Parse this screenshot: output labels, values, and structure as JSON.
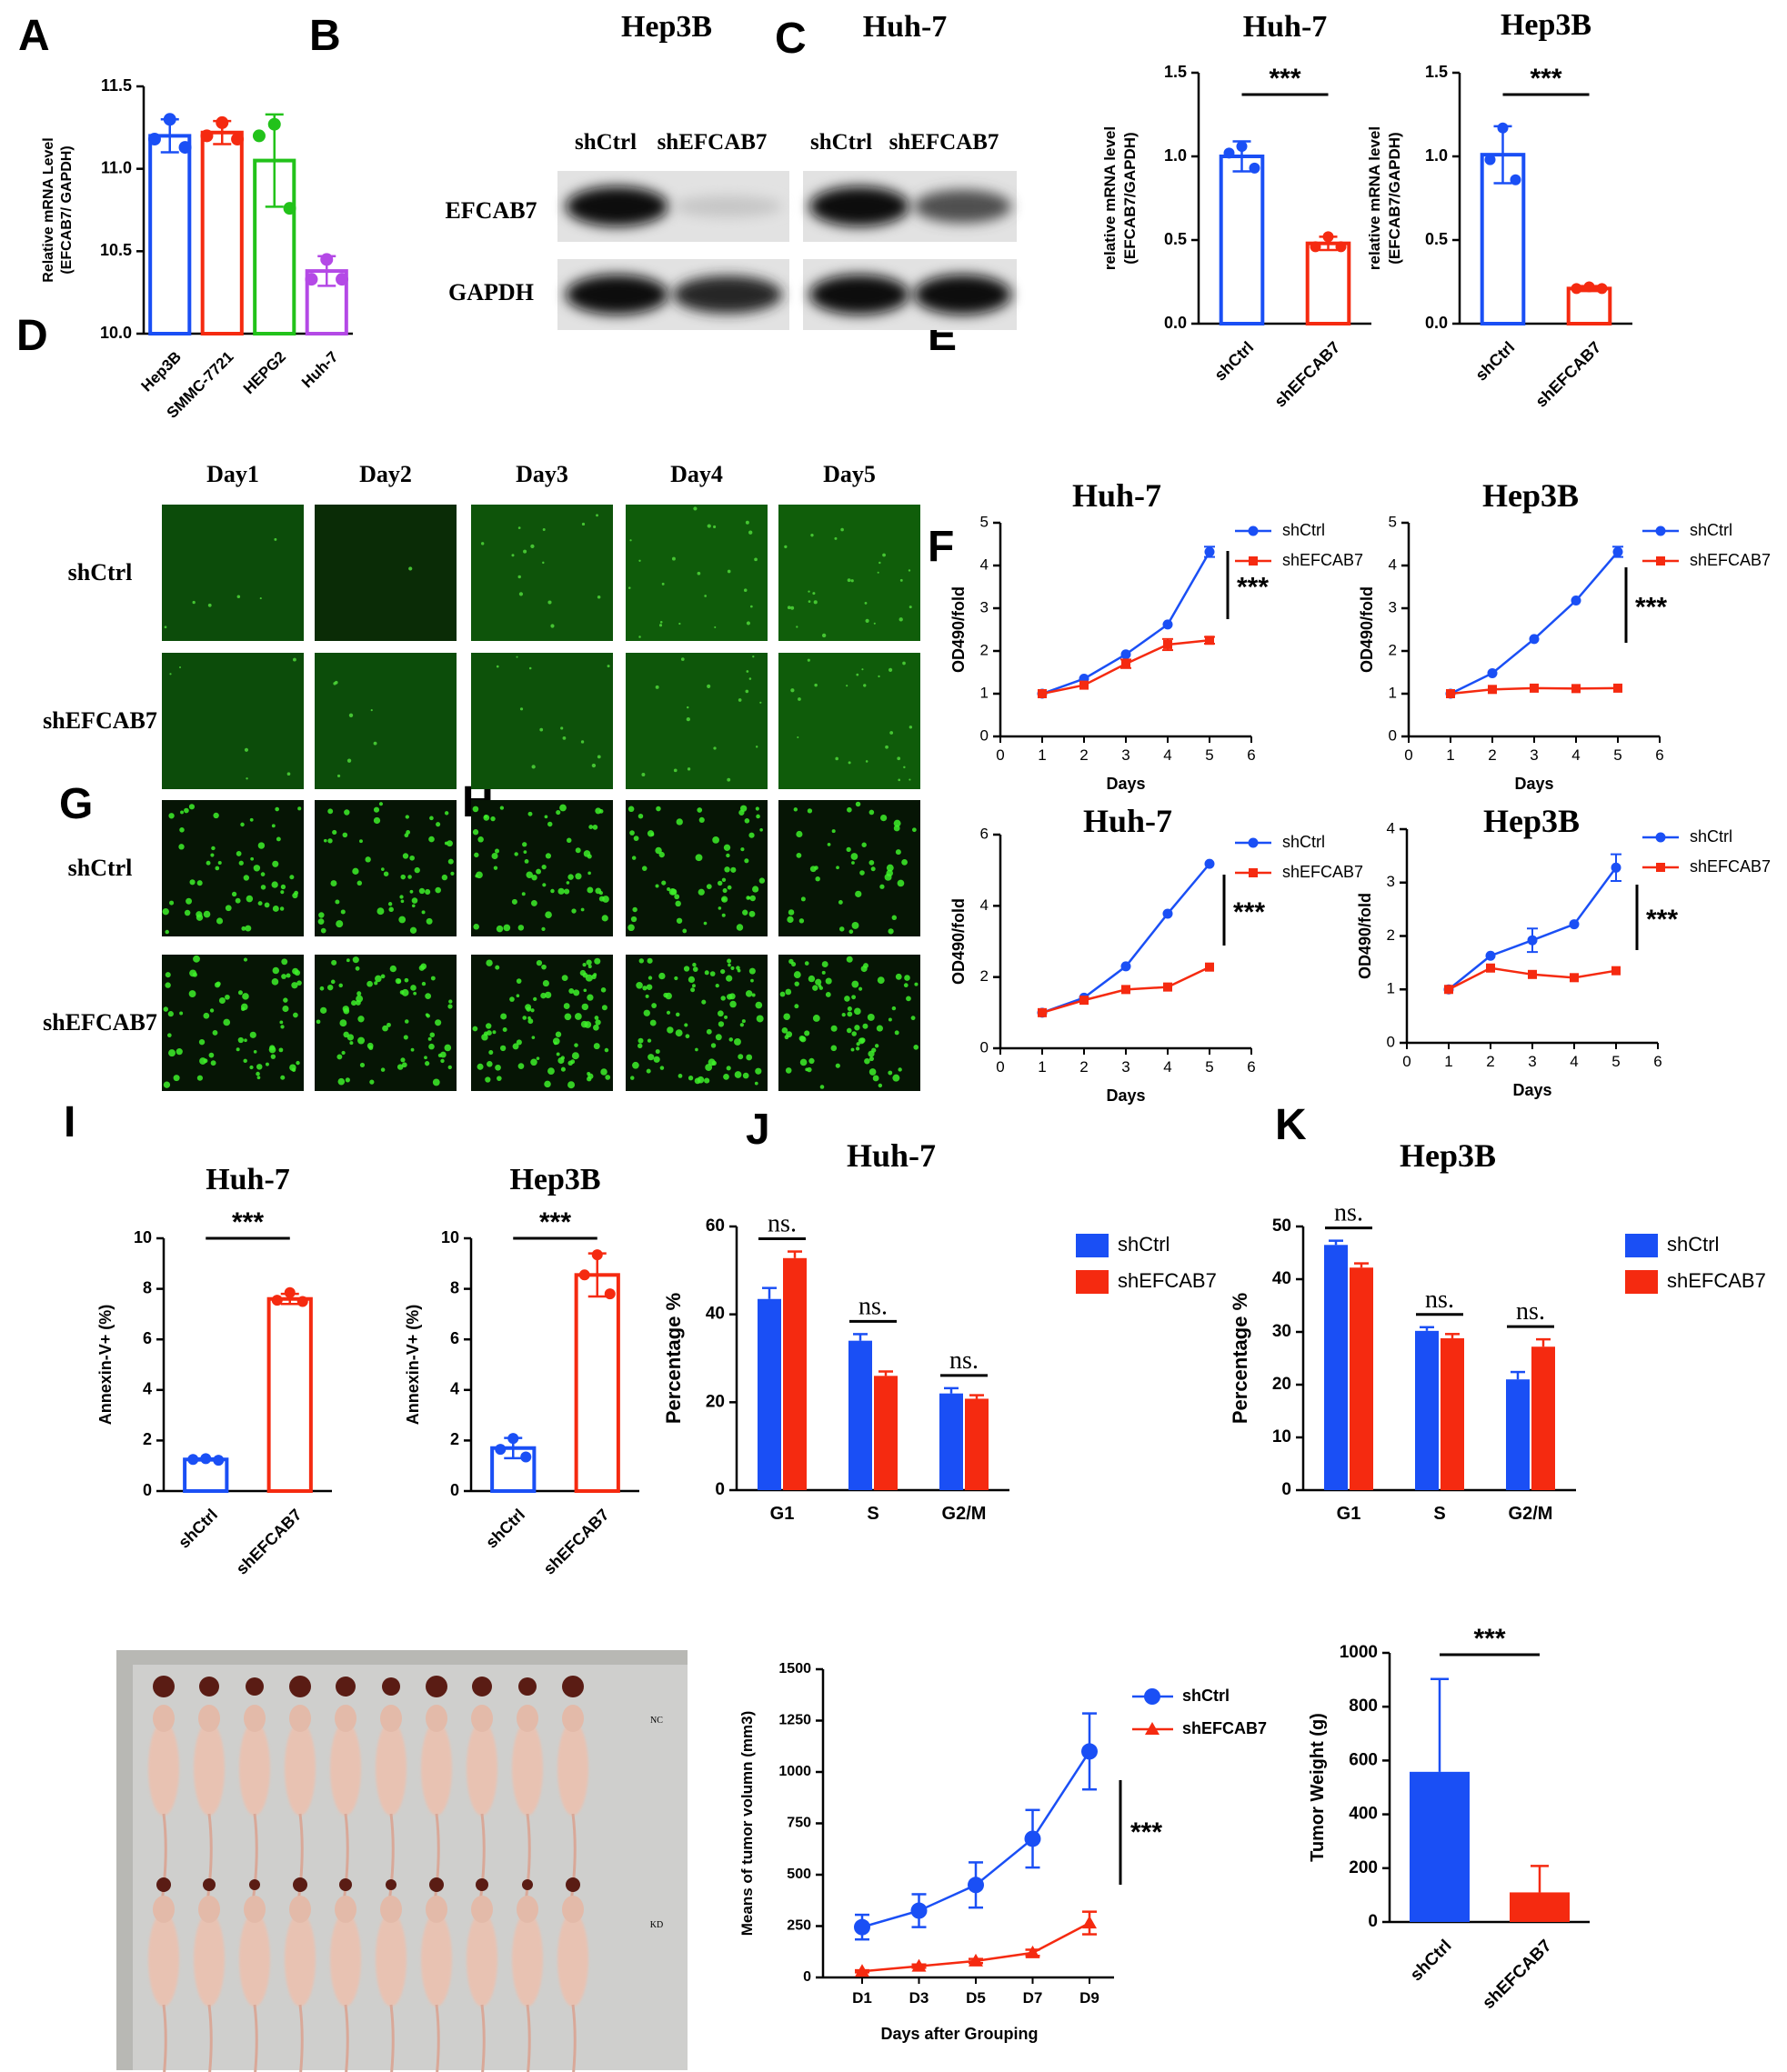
{
  "panel_letters": [
    "A",
    "B",
    "C",
    "D",
    "E",
    "F",
    "G",
    "H",
    "I",
    "J",
    "K"
  ],
  "colors": {
    "blue": "#1a4ff5",
    "red": "#f52a10",
    "green": "#22c21a",
    "purple": "#b449e6",
    "black": "#000000"
  },
  "significance": {
    "three_star": "***",
    "ns": "ns."
  },
  "western_blot": {
    "cell_lines": [
      "Hep3B",
      "Huh-7"
    ],
    "lanes": [
      "shCtrl",
      "shEFCAB7",
      "shCtrl",
      "shEFCAB7"
    ],
    "rows": [
      "EFCAB7",
      "GAPDH"
    ],
    "efcab7_relative_intensity": [
      1.0,
      0.15,
      1.0,
      0.7
    ],
    "gapdh_relative_intensity": [
      1.0,
      0.9,
      1.0,
      1.0
    ]
  },
  "fluorescence": {
    "columns": [
      "Day1",
      "Day2",
      "Day3",
      "Day4",
      "Day5"
    ],
    "rows": [
      "shCtrl",
      "shEFCAB7",
      "shCtrl",
      "shEFCAB7"
    ],
    "cell_density": [
      [
        0.05,
        0.01,
        0.12,
        0.18,
        0.2
      ],
      [
        0.05,
        0.06,
        0.1,
        0.14,
        0.18
      ],
      [
        0.45,
        0.45,
        0.5,
        0.5,
        0.35
      ],
      [
        0.55,
        0.6,
        0.7,
        0.7,
        0.65
      ]
    ]
  },
  "mouse_photo": {
    "group_labels": [
      "NC",
      "KD"
    ],
    "mice_per_group": 10
  },
  "chart_data": [
    {
      "panel": "A",
      "type": "bar",
      "title": "",
      "ylabel": "Relative mRNA Level\n(EFCAB7/ GAPDH)",
      "xlabel": "",
      "categories": [
        "Hep3B",
        "SMMC-7721",
        "HEPG2",
        "Huh-7"
      ],
      "values": [
        11.2,
        11.22,
        11.05,
        10.38
      ],
      "errors": [
        0.1,
        0.07,
        0.28,
        0.09
      ],
      "points": [
        [
          11.3,
          11.18,
          11.13
        ],
        [
          11.28,
          11.2,
          11.18
        ],
        [
          11.27,
          11.2,
          10.76
        ],
        [
          10.45,
          10.33,
          10.33
        ]
      ],
      "bar_colors": [
        "#1a4ff5",
        "#f52a10",
        "#22c21a",
        "#b449e6"
      ],
      "ylim": [
        10.0,
        11.5
      ],
      "yticks": [
        "10.0",
        "10.5",
        "11.0",
        "11.5"
      ]
    },
    {
      "panel": "C",
      "type": "bar",
      "title": "Huh-7",
      "ylabel": "relative mRNA level\n(EFCAB7/GAPDH)",
      "xlabel": "",
      "categories": [
        "shCtrl",
        "shEFCAB7"
      ],
      "values": [
        1.0,
        0.48
      ],
      "errors": [
        0.09,
        0.04
      ],
      "points": [
        [
          1.06,
          1.02,
          0.93
        ],
        [
          0.52,
          0.46,
          0.46
        ]
      ],
      "ylim": [
        0,
        1.5
      ],
      "yticks": [
        "0.0",
        "0.5",
        "1.0",
        "1.5"
      ],
      "significance": "***"
    },
    {
      "panel": "C",
      "type": "bar",
      "title": "Hep3B",
      "ylabel": "relative mRNA level\n(EFCAB7/GAPDH)",
      "xlabel": "",
      "categories": [
        "shCtrl",
        "shEFCAB7"
      ],
      "values": [
        1.01,
        0.21
      ],
      "errors": [
        0.17,
        0.015
      ],
      "points": [
        [
          1.17,
          0.98,
          0.86
        ],
        [
          0.22,
          0.21,
          0.21
        ]
      ],
      "ylim": [
        0,
        1.5
      ],
      "yticks": [
        "0.0",
        "0.5",
        "1.0",
        "1.5"
      ],
      "significance": "***"
    },
    {
      "panel": "E",
      "type": "line",
      "title": "Huh-7",
      "xlabel": "Days",
      "ylabel": "OD490/fold",
      "x": [
        1,
        2,
        3,
        4,
        5
      ],
      "series": [
        {
          "name": "shCtrl",
          "values": [
            1.0,
            1.35,
            1.92,
            2.62,
            4.32
          ],
          "errors": [
            0.02,
            0.03,
            0.04,
            0.03,
            0.12
          ]
        },
        {
          "name": "shEFCAB7",
          "values": [
            1.0,
            1.2,
            1.7,
            2.15,
            2.25
          ],
          "errors": [
            0.02,
            0.05,
            0.1,
            0.13,
            0.08
          ]
        }
      ],
      "xlim": [
        0,
        6
      ],
      "ylim": [
        0,
        5
      ],
      "xticks": [
        "0",
        "1",
        "2",
        "3",
        "4",
        "5",
        "6"
      ],
      "yticks": [
        "0",
        "1",
        "2",
        "3",
        "4",
        "5"
      ],
      "significance": "***"
    },
    {
      "panel": "E",
      "type": "line",
      "title": "Hep3B",
      "xlabel": "Days",
      "ylabel": "OD490/fold",
      "x": [
        1,
        2,
        3,
        4,
        5
      ],
      "series": [
        {
          "name": "shCtrl",
          "values": [
            1.0,
            1.48,
            2.28,
            3.18,
            4.32
          ],
          "errors": [
            0.02,
            0.03,
            0.03,
            0.03,
            0.12
          ]
        },
        {
          "name": "shEFCAB7",
          "values": [
            1.0,
            1.1,
            1.13,
            1.12,
            1.13
          ],
          "errors": [
            0.02,
            0.02,
            0.02,
            0.02,
            0.02
          ]
        }
      ],
      "xlim": [
        0,
        6
      ],
      "ylim": [
        0,
        5
      ],
      "xticks": [
        "0",
        "1",
        "2",
        "3",
        "4",
        "5",
        "6"
      ],
      "yticks": [
        "0",
        "1",
        "2",
        "3",
        "4",
        "5"
      ],
      "significance": "***"
    },
    {
      "panel": "F",
      "type": "line",
      "title": "Huh-7",
      "xlabel": "Days",
      "ylabel": "OD490/fold",
      "x": [
        1,
        2,
        3,
        4,
        5
      ],
      "series": [
        {
          "name": "shCtrl",
          "values": [
            1.0,
            1.42,
            2.3,
            3.78,
            5.18
          ],
          "errors": [
            0.03,
            0.03,
            0.03,
            0.03,
            0.03
          ]
        },
        {
          "name": "shEFCAB7",
          "values": [
            1.0,
            1.35,
            1.65,
            1.72,
            2.28
          ],
          "errors": [
            0.03,
            0.03,
            0.03,
            0.03,
            0.03
          ]
        }
      ],
      "xlim": [
        0,
        6
      ],
      "ylim": [
        0,
        6
      ],
      "xticks": [
        "0",
        "1",
        "2",
        "3",
        "4",
        "5",
        "6"
      ],
      "yticks": [
        "0",
        "2",
        "4",
        "6"
      ],
      "significance": "***"
    },
    {
      "panel": "F",
      "type": "line",
      "title": "Hep3B",
      "xlabel": "Days",
      "ylabel": "OD490/fold",
      "x": [
        1,
        2,
        3,
        4,
        5
      ],
      "series": [
        {
          "name": "shCtrl",
          "values": [
            1.0,
            1.63,
            1.92,
            2.22,
            3.28
          ],
          "errors": [
            0.03,
            0.04,
            0.22,
            0.03,
            0.25
          ]
        },
        {
          "name": "shEFCAB7",
          "values": [
            1.0,
            1.4,
            1.28,
            1.22,
            1.35
          ],
          "errors": [
            0.03,
            0.03,
            0.03,
            0.03,
            0.03
          ]
        }
      ],
      "xlim": [
        0,
        6
      ],
      "ylim": [
        0,
        4
      ],
      "xticks": [
        "0",
        "1",
        "2",
        "3",
        "4",
        "5",
        "6"
      ],
      "yticks": [
        "0",
        "1",
        "2",
        "3",
        "4"
      ],
      "significance": "***"
    },
    {
      "panel": "G",
      "type": "bar",
      "title": "Huh-7",
      "ylabel": "Annexin-V+  (%)",
      "xlabel": "",
      "categories": [
        "shCtrl",
        "shEFCAB7"
      ],
      "values": [
        1.25,
        7.6
      ],
      "errors": [
        0.04,
        0.2
      ],
      "points": [
        [
          1.28,
          1.25,
          1.22
        ],
        [
          7.85,
          7.55,
          7.5
        ]
      ],
      "ylim": [
        0,
        10
      ],
      "yticks": [
        "0",
        "2",
        "4",
        "6",
        "8",
        "10"
      ],
      "significance": "***"
    },
    {
      "panel": "G",
      "type": "bar",
      "title": "Hep3B",
      "ylabel": "Annexin-V+  (%)",
      "xlabel": "",
      "categories": [
        "shCtrl",
        "shEFCAB7"
      ],
      "values": [
        1.7,
        8.55
      ],
      "errors": [
        0.4,
        0.85
      ],
      "points": [
        [
          2.08,
          1.65,
          1.35
        ],
        [
          9.35,
          8.55,
          7.8
        ]
      ],
      "ylim": [
        0,
        10
      ],
      "yticks": [
        "0",
        "2",
        "4",
        "6",
        "8",
        "10"
      ],
      "significance": "***"
    },
    {
      "panel": "H",
      "type": "bar",
      "title": "Huh-7",
      "ylabel": "Percentage %",
      "xlabel": "",
      "categories": [
        "G1",
        "S",
        "G2/M"
      ],
      "series": [
        {
          "name": "shCtrl",
          "values": [
            43.5,
            34.0,
            22.0
          ],
          "errors": [
            2.5,
            1.5,
            1.2
          ]
        },
        {
          "name": "shEFCAB7",
          "values": [
            52.8,
            26.0,
            20.8
          ],
          "errors": [
            1.5,
            1.0,
            0.8
          ]
        }
      ],
      "ylim": [
        0,
        60
      ],
      "yticks": [
        "0",
        "20",
        "40",
        "60"
      ],
      "significance": [
        "ns.",
        "ns.",
        "ns."
      ]
    },
    {
      "panel": "H",
      "type": "bar",
      "title": "Hep3B",
      "ylabel": "Percentage %",
      "xlabel": "",
      "categories": [
        "G1",
        "S",
        "G2/M"
      ],
      "series": [
        {
          "name": "shCtrl",
          "values": [
            46.5,
            30.2,
            21.0
          ],
          "errors": [
            0.8,
            0.7,
            1.4
          ]
        },
        {
          "name": "shEFCAB7",
          "values": [
            42.2,
            28.8,
            27.2
          ],
          "errors": [
            0.8,
            0.8,
            1.4
          ]
        }
      ],
      "ylim": [
        0,
        50
      ],
      "yticks": [
        "0",
        "10",
        "20",
        "30",
        "40",
        "50"
      ],
      "significance": [
        "ns.",
        "ns.",
        "ns."
      ]
    },
    {
      "panel": "J",
      "type": "line",
      "title": "",
      "xlabel": "Days after Grouping",
      "ylabel": "Means of tumor volumn  (mm3)",
      "categories": [
        "D1",
        "D3",
        "D5",
        "D7",
        "D9"
      ],
      "series": [
        {
          "name": "shCtrl",
          "values": [
            245,
            325,
            450,
            675,
            1100
          ],
          "errors": [
            60,
            80,
            110,
            140,
            185
          ]
        },
        {
          "name": "shEFCAB7",
          "values": [
            30,
            55,
            80,
            120,
            265
          ],
          "errors": [
            5,
            8,
            10,
            15,
            55
          ]
        }
      ],
      "ylim": [
        0,
        1500
      ],
      "yticks": [
        "0",
        "250",
        "500",
        "750",
        "1000",
        "1250",
        "1500"
      ],
      "significance": "***"
    },
    {
      "panel": "K",
      "type": "bar",
      "title": "",
      "ylabel": "Tumor Weight (g)",
      "xlabel": "",
      "categories": [
        "shCtrl",
        "shEFCAB7"
      ],
      "values": [
        558,
        110
      ],
      "errors": [
        345,
        98
      ],
      "ylim": [
        0,
        1000
      ],
      "yticks": [
        "0",
        "200",
        "400",
        "600",
        "800",
        "1000"
      ],
      "significance": "***"
    }
  ]
}
